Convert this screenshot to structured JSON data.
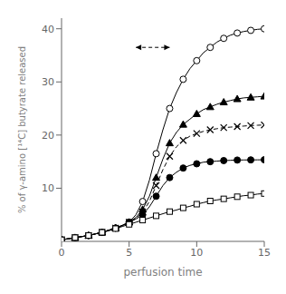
{
  "chart_data": {
    "type": "line",
    "xlabel": "perfusion time",
    "ylabel": "% of γ-amino [¹⁴C] butyrate released",
    "xlim": [
      0,
      15
    ],
    "ylim": [
      0,
      42
    ],
    "xticks": [
      0,
      5,
      10,
      15
    ],
    "yticks": [
      10,
      20,
      30,
      40
    ],
    "grid": false,
    "x": [
      0,
      0.5,
      1,
      1.5,
      2,
      2.5,
      3,
      3.5,
      4,
      4.5,
      5,
      5.5,
      6,
      6.5,
      7,
      7.5,
      8,
      8.5,
      9,
      9.5,
      10,
      10.5,
      11,
      11.5,
      12,
      12.5,
      13,
      13.5,
      14,
      14.5,
      15
    ],
    "series": [
      {
        "color": "black",
        "marker": "circle-open",
        "line_style": "solid",
        "values": [
          0.3,
          0.5,
          0.7,
          0.9,
          1.1,
          1.4,
          1.7,
          2.1,
          2.5,
          3.0,
          3.6,
          5.0,
          7.5,
          11.5,
          16.5,
          21.0,
          25.0,
          28.0,
          30.5,
          32.5,
          34.0,
          35.5,
          36.5,
          37.5,
          38.2,
          38.8,
          39.2,
          39.5,
          39.7,
          39.9,
          40.0
        ]
      },
      {
        "color": "black",
        "marker": "triangle",
        "line_style": "solid",
        "values": [
          0.3,
          0.5,
          0.7,
          0.9,
          1.1,
          1.4,
          1.7,
          2.1,
          2.5,
          3.0,
          3.6,
          4.5,
          6.0,
          8.5,
          12.0,
          15.5,
          18.5,
          20.5,
          22.0,
          23.0,
          24.0,
          24.8,
          25.3,
          25.8,
          26.2,
          26.5,
          26.8,
          27.0,
          27.1,
          27.2,
          27.3
        ]
      },
      {
        "color": "black",
        "marker": "x",
        "line_style": "dashed",
        "values": [
          0.3,
          0.5,
          0.7,
          0.9,
          1.1,
          1.4,
          1.7,
          2.1,
          2.5,
          3.0,
          3.6,
          4.3,
          5.5,
          7.5,
          10.5,
          13.5,
          16.0,
          17.8,
          19.0,
          19.8,
          20.3,
          20.7,
          21.0,
          21.2,
          21.4,
          21.5,
          21.6,
          21.7,
          21.8,
          21.85,
          21.9
        ]
      },
      {
        "color": "black",
        "marker": "circle",
        "line_style": "solid",
        "values": [
          0.3,
          0.5,
          0.7,
          0.9,
          1.1,
          1.4,
          1.7,
          2.1,
          2.5,
          3.0,
          3.6,
          4.2,
          5.0,
          6.5,
          8.5,
          10.5,
          12.0,
          13.0,
          13.8,
          14.3,
          14.6,
          14.9,
          15.0,
          15.1,
          15.2,
          15.25,
          15.3,
          15.32,
          15.33,
          15.34,
          15.35
        ]
      },
      {
        "color": "black",
        "marker": "square-open",
        "line_style": "solid",
        "values": [
          0.3,
          0.5,
          0.7,
          0.9,
          1.1,
          1.4,
          1.7,
          2.0,
          2.4,
          2.8,
          3.2,
          3.6,
          4.0,
          4.4,
          4.8,
          5.2,
          5.6,
          5.9,
          6.3,
          6.6,
          7.0,
          7.3,
          7.6,
          7.8,
          8.0,
          8.2,
          8.4,
          8.6,
          8.7,
          8.9,
          9.0
        ]
      }
    ],
    "annotations": [
      {
        "type": "double_arrow",
        "x1": 5.5,
        "x2": 8.0,
        "y": 36.5,
        "line_style": "dashed"
      }
    ]
  }
}
